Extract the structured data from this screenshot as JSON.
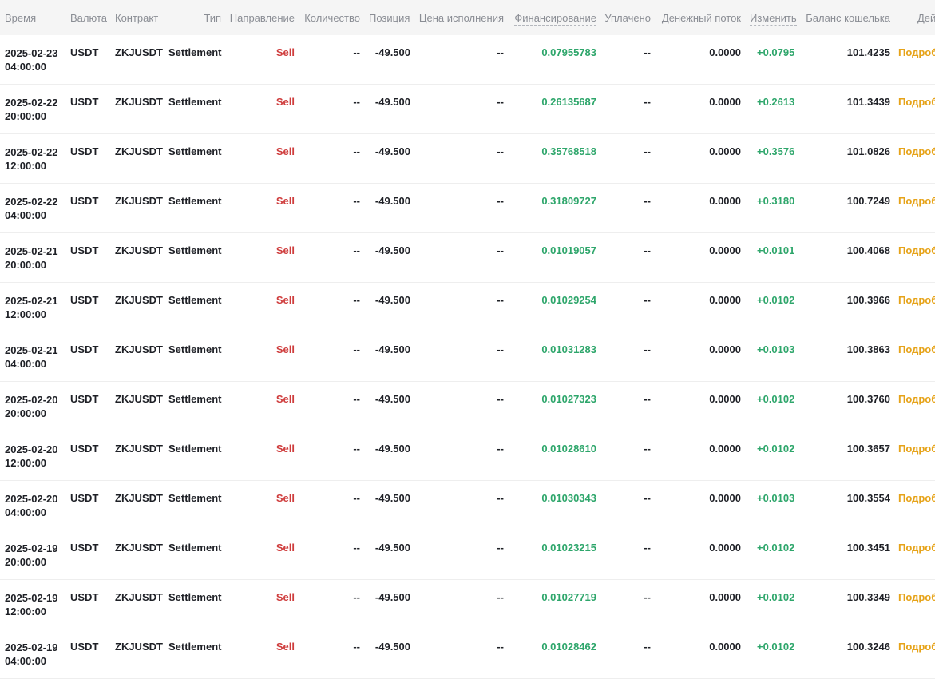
{
  "columns": {
    "time": "Время",
    "currency": "Валюта",
    "contract": "Контракт",
    "type": "Тип",
    "direction": "Направление",
    "quantity": "Количество",
    "position": "Позиция",
    "exec_price": "Цена исполнения",
    "funding": "Финансирование",
    "paid": "Уплачено",
    "cash_flow": "Денежный поток",
    "change": "Изменить",
    "wallet_balance": "Баланс кошелька",
    "actions": "Действия"
  },
  "rows": [
    {
      "date": "2025-02-23",
      "hour": "04:00:00",
      "currency": "USDT",
      "contract": "ZKJUSDT",
      "type": "Settlement",
      "direction": "Sell",
      "quantity": "--",
      "position": "-49.500",
      "exec_price": "--",
      "funding": "0.07955783",
      "paid": "--",
      "cash_flow": "0.0000",
      "change": "+0.0795",
      "balance": "101.4235",
      "action": "Подробнее"
    },
    {
      "date": "2025-02-22",
      "hour": "20:00:00",
      "currency": "USDT",
      "contract": "ZKJUSDT",
      "type": "Settlement",
      "direction": "Sell",
      "quantity": "--",
      "position": "-49.500",
      "exec_price": "--",
      "funding": "0.26135687",
      "paid": "--",
      "cash_flow": "0.0000",
      "change": "+0.2613",
      "balance": "101.3439",
      "action": "Подробнее"
    },
    {
      "date": "2025-02-22",
      "hour": "12:00:00",
      "currency": "USDT",
      "contract": "ZKJUSDT",
      "type": "Settlement",
      "direction": "Sell",
      "quantity": "--",
      "position": "-49.500",
      "exec_price": "--",
      "funding": "0.35768518",
      "paid": "--",
      "cash_flow": "0.0000",
      "change": "+0.3576",
      "balance": "101.0826",
      "action": "Подробнее"
    },
    {
      "date": "2025-02-22",
      "hour": "04:00:00",
      "currency": "USDT",
      "contract": "ZKJUSDT",
      "type": "Settlement",
      "direction": "Sell",
      "quantity": "--",
      "position": "-49.500",
      "exec_price": "--",
      "funding": "0.31809727",
      "paid": "--",
      "cash_flow": "0.0000",
      "change": "+0.3180",
      "balance": "100.7249",
      "action": "Подробнее"
    },
    {
      "date": "2025-02-21",
      "hour": "20:00:00",
      "currency": "USDT",
      "contract": "ZKJUSDT",
      "type": "Settlement",
      "direction": "Sell",
      "quantity": "--",
      "position": "-49.500",
      "exec_price": "--",
      "funding": "0.01019057",
      "paid": "--",
      "cash_flow": "0.0000",
      "change": "+0.0101",
      "balance": "100.4068",
      "action": "Подробнее"
    },
    {
      "date": "2025-02-21",
      "hour": "12:00:00",
      "currency": "USDT",
      "contract": "ZKJUSDT",
      "type": "Settlement",
      "direction": "Sell",
      "quantity": "--",
      "position": "-49.500",
      "exec_price": "--",
      "funding": "0.01029254",
      "paid": "--",
      "cash_flow": "0.0000",
      "change": "+0.0102",
      "balance": "100.3966",
      "action": "Подробнее"
    },
    {
      "date": "2025-02-21",
      "hour": "04:00:00",
      "currency": "USDT",
      "contract": "ZKJUSDT",
      "type": "Settlement",
      "direction": "Sell",
      "quantity": "--",
      "position": "-49.500",
      "exec_price": "--",
      "funding": "0.01031283",
      "paid": "--",
      "cash_flow": "0.0000",
      "change": "+0.0103",
      "balance": "100.3863",
      "action": "Подробнее"
    },
    {
      "date": "2025-02-20",
      "hour": "20:00:00",
      "currency": "USDT",
      "contract": "ZKJUSDT",
      "type": "Settlement",
      "direction": "Sell",
      "quantity": "--",
      "position": "-49.500",
      "exec_price": "--",
      "funding": "0.01027323",
      "paid": "--",
      "cash_flow": "0.0000",
      "change": "+0.0102",
      "balance": "100.3760",
      "action": "Подробнее"
    },
    {
      "date": "2025-02-20",
      "hour": "12:00:00",
      "currency": "USDT",
      "contract": "ZKJUSDT",
      "type": "Settlement",
      "direction": "Sell",
      "quantity": "--",
      "position": "-49.500",
      "exec_price": "--",
      "funding": "0.01028610",
      "paid": "--",
      "cash_flow": "0.0000",
      "change": "+0.0102",
      "balance": "100.3657",
      "action": "Подробнее"
    },
    {
      "date": "2025-02-20",
      "hour": "04:00:00",
      "currency": "USDT",
      "contract": "ZKJUSDT",
      "type": "Settlement",
      "direction": "Sell",
      "quantity": "--",
      "position": "-49.500",
      "exec_price": "--",
      "funding": "0.01030343",
      "paid": "--",
      "cash_flow": "0.0000",
      "change": "+0.0103",
      "balance": "100.3554",
      "action": "Подробнее"
    },
    {
      "date": "2025-02-19",
      "hour": "20:00:00",
      "currency": "USDT",
      "contract": "ZKJUSDT",
      "type": "Settlement",
      "direction": "Sell",
      "quantity": "--",
      "position": "-49.500",
      "exec_price": "--",
      "funding": "0.01023215",
      "paid": "--",
      "cash_flow": "0.0000",
      "change": "+0.0102",
      "balance": "100.3451",
      "action": "Подробнее"
    },
    {
      "date": "2025-02-19",
      "hour": "12:00:00",
      "currency": "USDT",
      "contract": "ZKJUSDT",
      "type": "Settlement",
      "direction": "Sell",
      "quantity": "--",
      "position": "-49.500",
      "exec_price": "--",
      "funding": "0.01027719",
      "paid": "--",
      "cash_flow": "0.0000",
      "change": "+0.0102",
      "balance": "100.3349",
      "action": "Подробнее"
    },
    {
      "date": "2025-02-19",
      "hour": "04:00:00",
      "currency": "USDT",
      "contract": "ZKJUSDT",
      "type": "Settlement",
      "direction": "Sell",
      "quantity": "--",
      "position": "-49.500",
      "exec_price": "--",
      "funding": "0.01028462",
      "paid": "--",
      "cash_flow": "0.0000",
      "change": "+0.0102",
      "balance": "100.3246",
      "action": "Подробнее"
    }
  ],
  "colors": {
    "sell": "#cf3d3d",
    "positive": "#2ea66b",
    "link": "#e6a319",
    "header_bg": "#f5f5f5"
  }
}
